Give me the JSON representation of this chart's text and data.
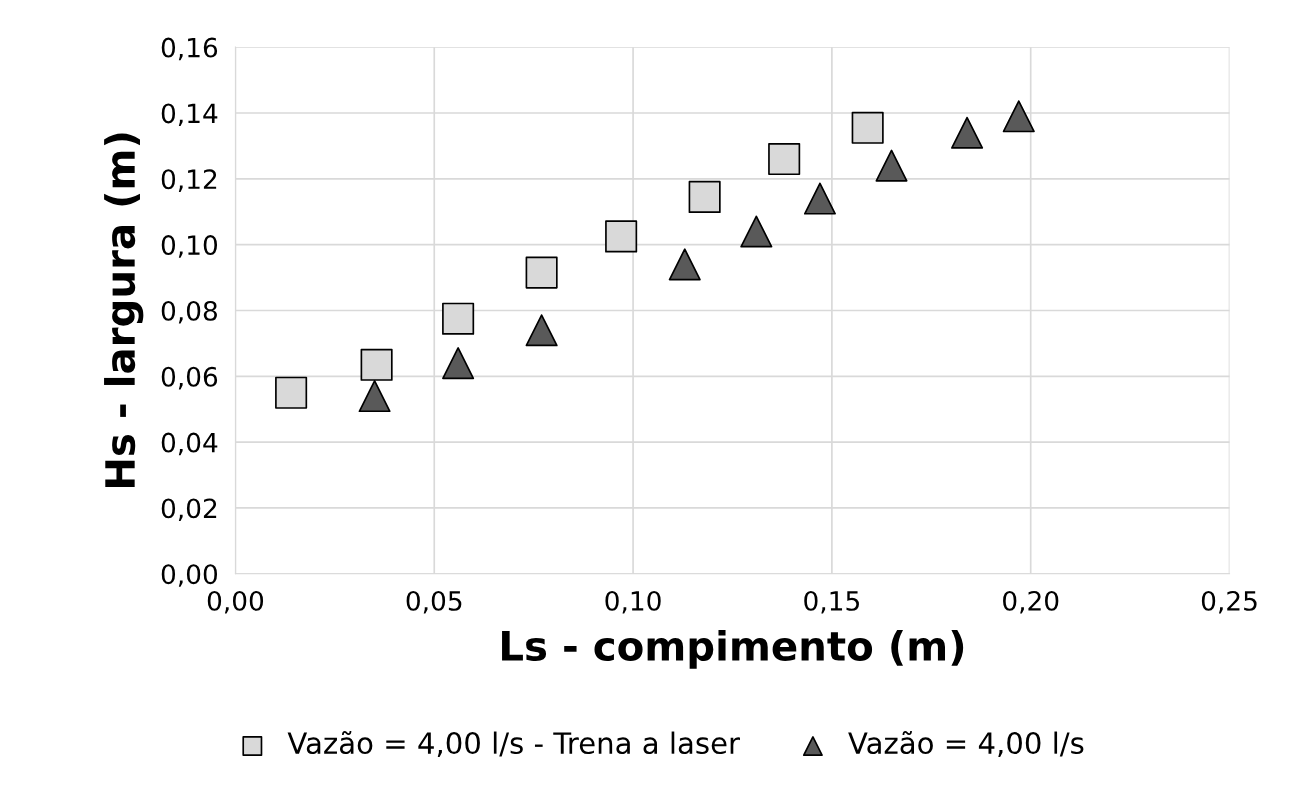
{
  "chart_data": {
    "type": "scatter",
    "xlabel": "Ls - compimento (m)",
    "ylabel": "Hs - largura (m)",
    "xlim": [
      0,
      0.25
    ],
    "ylim": [
      0,
      0.16
    ],
    "xticks": [
      {
        "value": 0,
        "label": "0,00"
      },
      {
        "value": 0.05,
        "label": "0,05"
      },
      {
        "value": 0.1,
        "label": "0,10"
      },
      {
        "value": 0.15,
        "label": "0,15"
      },
      {
        "value": 0.2,
        "label": "0,20"
      },
      {
        "value": 0.25,
        "label": "0,25"
      }
    ],
    "yticks": [
      {
        "value": 0,
        "label": "0,00"
      },
      {
        "value": 0.02,
        "label": "0,02"
      },
      {
        "value": 0.04,
        "label": "0,04"
      },
      {
        "value": 0.06,
        "label": "0,06"
      },
      {
        "value": 0.08,
        "label": "0,08"
      },
      {
        "value": 0.1,
        "label": "0,10"
      },
      {
        "value": 0.12,
        "label": "0,12"
      },
      {
        "value": 0.14,
        "label": "0,14"
      },
      {
        "value": 0.16,
        "label": "0,16"
      }
    ],
    "grid": true,
    "legend": "bottom",
    "series": [
      {
        "name": "Vazão = 4,00 l/s - Trena a laser",
        "color": "#d9d9d9",
        "marker": "square",
        "x": [
          0.014,
          0.0355,
          0.056,
          0.077,
          0.097,
          0.118,
          0.138,
          0.159
        ],
        "values": [
          0.055,
          0.0635,
          0.0775,
          0.0915,
          0.1025,
          0.1145,
          0.126,
          0.1355
        ]
      },
      {
        "name": "Vazão = 4,00 l/s",
        "color": "#595959",
        "marker": "triangle",
        "x": [
          0.035,
          0.056,
          0.077,
          0.113,
          0.131,
          0.147,
          0.165,
          0.184,
          0.197
        ],
        "values": [
          0.054,
          0.064,
          0.074,
          0.094,
          0.104,
          0.114,
          0.124,
          0.134,
          0.139
        ]
      }
    ]
  }
}
